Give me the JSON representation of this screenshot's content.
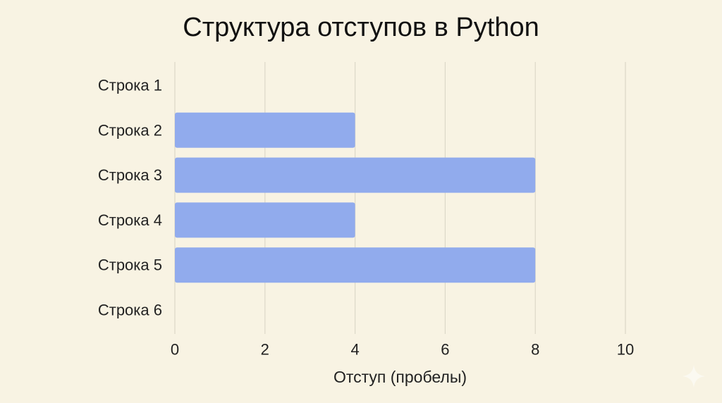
{
  "colors": {
    "background": "#f8f3e3",
    "bar": "#91abed",
    "grid": "#dcd8c8",
    "text": "#222222",
    "sparkle": "#fbf9f1"
  },
  "chart_data": {
    "type": "bar",
    "orientation": "horizontal",
    "title": "Структура отступов в Python",
    "xlabel": "Отступ (пробелы)",
    "ylabel": "",
    "categories": [
      "Строка 1",
      "Строка 2",
      "Строка 3",
      "Строка 4",
      "Строка 5",
      "Строка 6"
    ],
    "values": [
      0,
      4,
      8,
      4,
      8,
      0
    ],
    "xlim": [
      0,
      10
    ],
    "xticks": [
      0,
      2,
      4,
      6,
      8,
      10
    ],
    "grid": "vertical",
    "legend": "none"
  },
  "watermark": {
    "icon": "sparkle-icon"
  }
}
